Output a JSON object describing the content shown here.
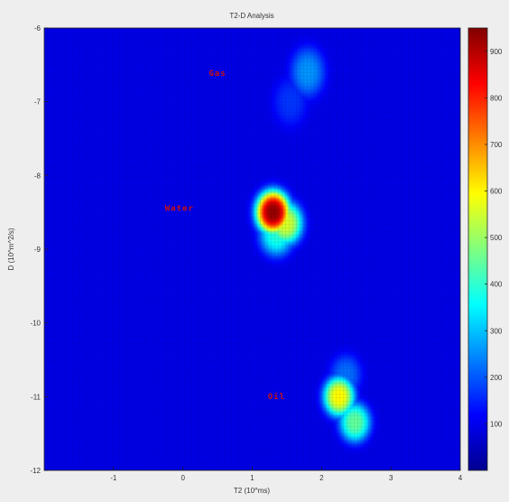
{
  "chart_data": {
    "type": "heatmap",
    "title": "T2-D Analysis",
    "xlabel": "T2 (10^ms)",
    "ylabel": "D (10^m^2/s)",
    "xlim": [
      -2,
      4
    ],
    "ylim": [
      -12,
      -6
    ],
    "x_ticks": [
      "-1",
      "0",
      "1",
      "2",
      "3",
      "4"
    ],
    "y_ticks": [
      "-6",
      "-7",
      "-8",
      "-9",
      "-10",
      "-11",
      "-12"
    ],
    "colorbar": {
      "min": 0,
      "max": 950,
      "ticks": [
        "100",
        "200",
        "300",
        "400",
        "500",
        "600",
        "700",
        "800",
        "900"
      ],
      "colormap": "jet"
    },
    "peaks": [
      {
        "label": "Gas",
        "t2": 1.8,
        "d": -6.6,
        "peak_value": 180
      },
      {
        "label": "Water",
        "t2": 1.3,
        "d": -8.5,
        "peak_value": 930
      },
      {
        "label": "Oil",
        "t2": 2.3,
        "d": -11.05,
        "peak_value": 560
      }
    ]
  }
}
